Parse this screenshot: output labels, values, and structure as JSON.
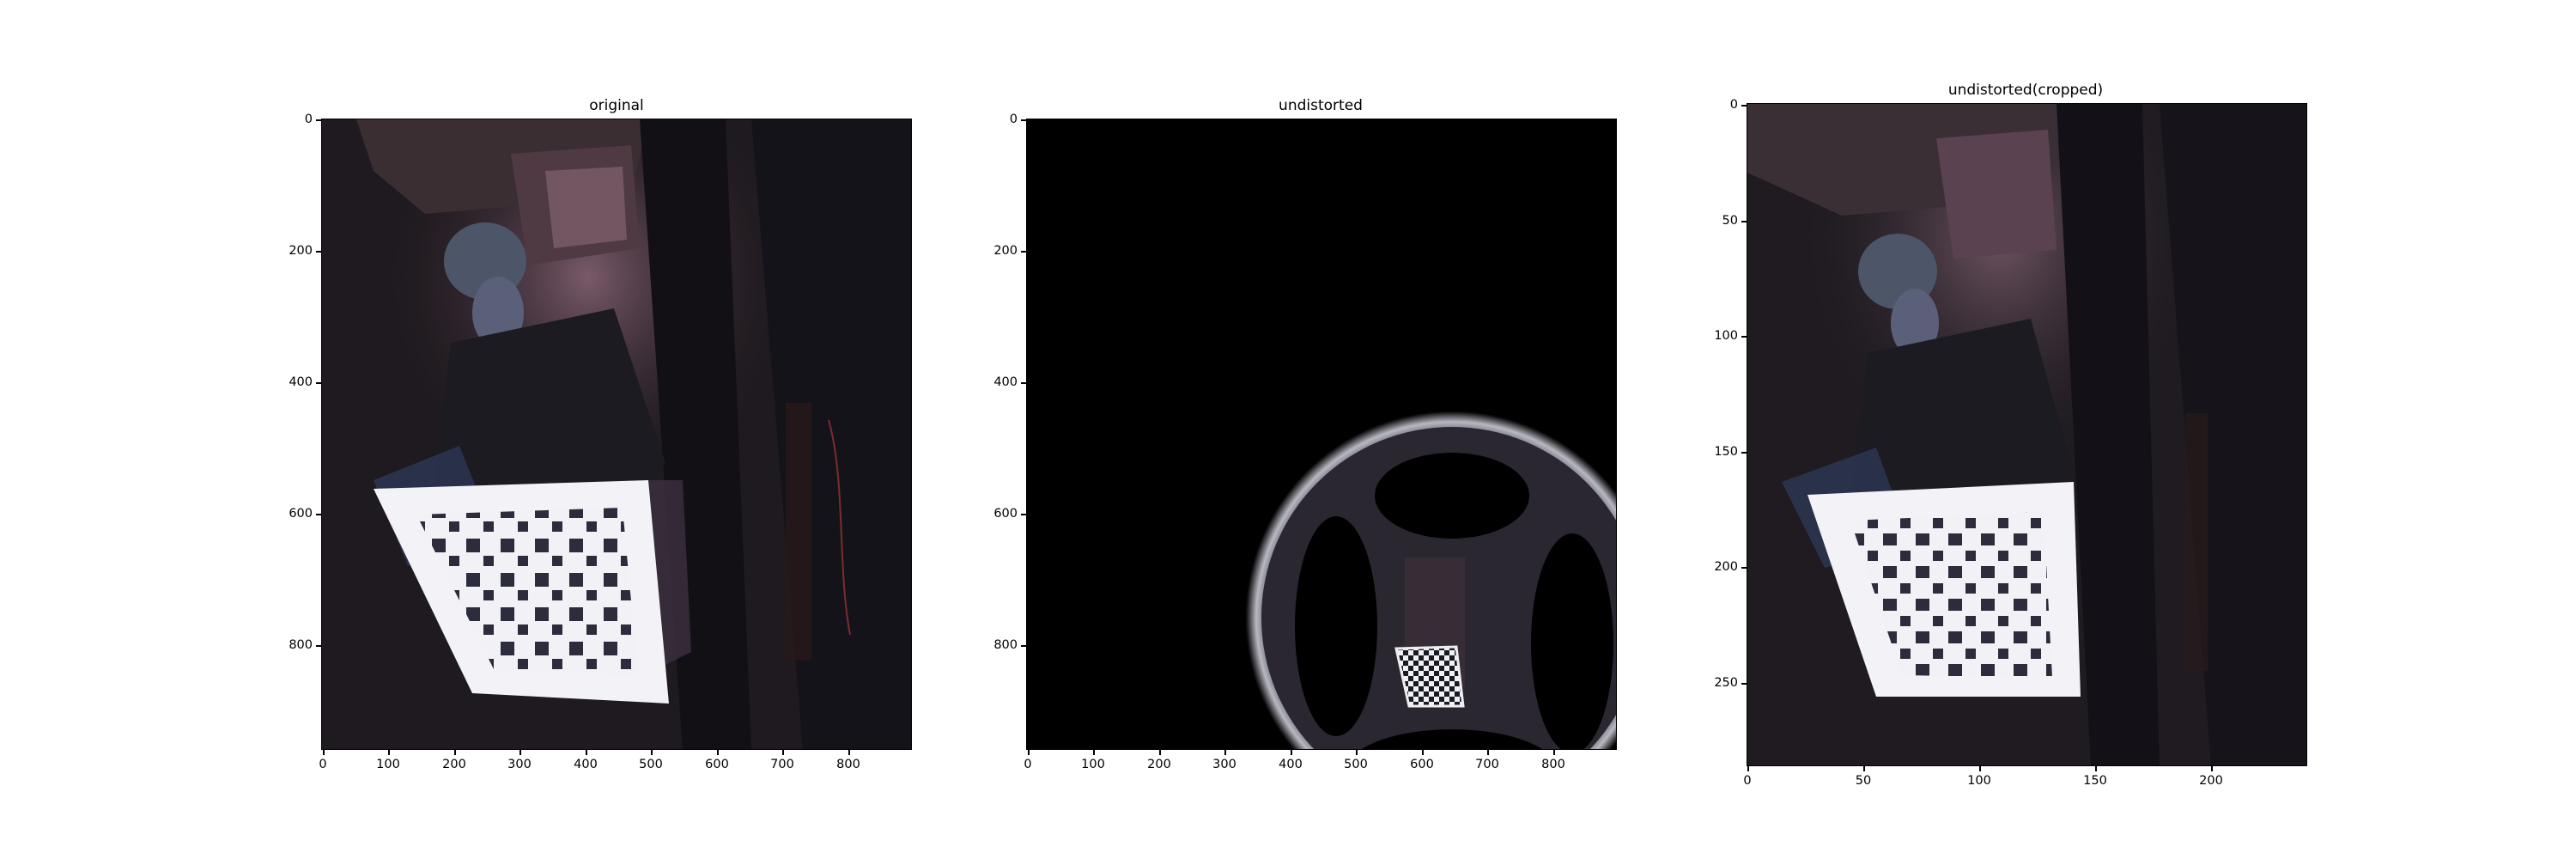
{
  "figure": {
    "background": "#ffffff",
    "panels": [
      {
        "id": "original",
        "title": "original",
        "image": "dark room photo of a person holding a checkerboard calibration pattern",
        "x_ticks": [
          "0",
          "100",
          "200",
          "300",
          "400",
          "500",
          "600",
          "700",
          "800"
        ],
        "y_ticks": [
          "0",
          "200",
          "400",
          "600",
          "800"
        ]
      },
      {
        "id": "undistorted",
        "title": "undistorted",
        "image": "black canvas with warped fisheye-like ring containing a small checkerboard",
        "x_ticks": [
          "0",
          "100",
          "200",
          "300",
          "400",
          "500",
          "600",
          "700",
          "800"
        ],
        "y_ticks": [
          "0",
          "200",
          "400",
          "600",
          "800"
        ]
      },
      {
        "id": "cropped",
        "title": "undistorted(cropped)",
        "image": "cropped undistorted photo of person holding checkerboard",
        "x_ticks": [
          "0",
          "50",
          "100",
          "150",
          "200"
        ],
        "y_ticks": [
          "0",
          "50",
          "100",
          "150",
          "200",
          "250"
        ]
      }
    ]
  }
}
